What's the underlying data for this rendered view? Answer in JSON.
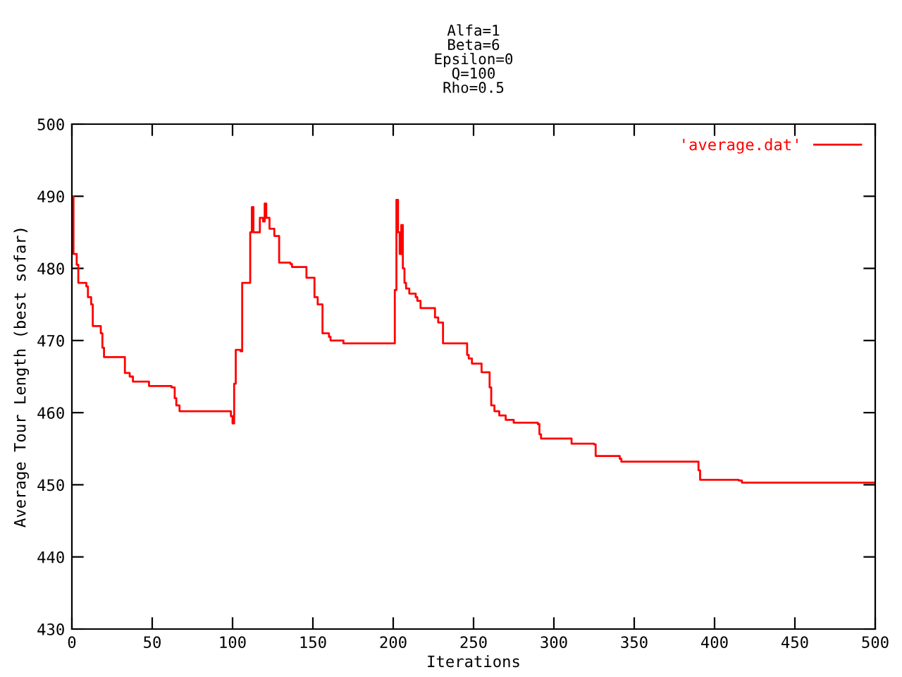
{
  "chart_data": {
    "type": "step",
    "title": "Alfa=1\nBeta=6\nEpsilon=0\nQ=100\nRho=0.5",
    "xlabel": "Iterations",
    "ylabel": "Average Tour Length (best sofar)",
    "series": [
      {
        "name": "'average.dat'",
        "color": "#ff0000",
        "x": [
          0,
          1,
          3,
          4,
          9,
          10,
          12,
          13,
          18,
          19,
          20,
          33,
          36,
          38,
          48,
          62,
          64,
          65,
          67,
          99,
          100,
          101,
          102,
          105,
          106,
          110,
          111,
          112,
          113,
          116,
          117,
          119,
          120,
          121,
          123,
          126,
          129,
          136,
          137,
          146,
          151,
          153,
          156,
          160,
          161,
          169,
          200,
          201,
          202,
          203,
          204,
          205,
          206,
          207,
          208,
          210,
          214,
          215,
          217,
          226,
          228,
          231,
          245,
          246,
          247,
          249,
          255,
          260,
          261,
          263,
          266,
          270,
          275,
          290,
          291,
          292,
          310,
          311,
          325,
          326,
          341,
          342,
          389,
          390,
          391,
          415,
          417,
          500
        ],
        "values": [
          490,
          482,
          480.5,
          478,
          477.5,
          476,
          475,
          472,
          471,
          469,
          467.7,
          465.5,
          465,
          464.3,
          463.7,
          463.5,
          462,
          461,
          460.2,
          459.5,
          458.5,
          464,
          468.7,
          468.5,
          478,
          478,
          485,
          488.5,
          485,
          485,
          487,
          486.5,
          489,
          487,
          485.5,
          484.5,
          480.8,
          480.6,
          480.2,
          478.7,
          476,
          475,
          471,
          470.5,
          470,
          469.6,
          469.6,
          477,
          489.5,
          485,
          482,
          486,
          480,
          478,
          477.2,
          476.5,
          476,
          475.5,
          474.5,
          473.2,
          472.5,
          469.6,
          469.6,
          468,
          467.5,
          466.8,
          465.6,
          463.5,
          461,
          460.2,
          459.6,
          459,
          458.6,
          458.4,
          457,
          456.4,
          456.4,
          455.7,
          455.6,
          454,
          453.6,
          453.2,
          453.2,
          452,
          450.7,
          450.6,
          450.3,
          450.3
        ]
      }
    ],
    "xlim": [
      0,
      500
    ],
    "xticks": [
      0,
      50,
      100,
      150,
      200,
      250,
      300,
      350,
      400,
      450,
      500
    ],
    "ylim": [
      430,
      500
    ],
    "yticks": [
      430,
      440,
      450,
      460,
      470,
      480,
      490,
      500
    ],
    "grid": false,
    "legend": "top right"
  }
}
